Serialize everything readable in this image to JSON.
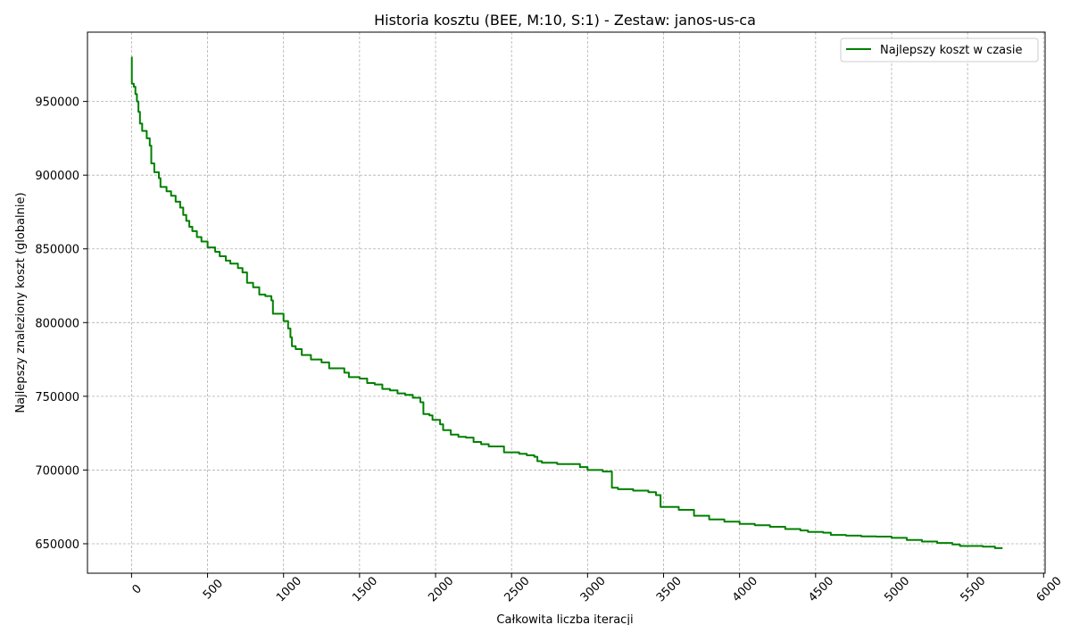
{
  "chart_data": {
    "type": "line",
    "title": "Historia kosztu (BEE, M:10, S:1) - Zestaw: janos-us-ca",
    "xlabel": "Całkowita liczba iteracji",
    "ylabel": "Najlepszy znaleziony koszt (globalnie)",
    "xlim": [
      -290,
      6010
    ],
    "ylim": [
      630000,
      997000
    ],
    "xticks": [
      0,
      500,
      1000,
      1500,
      2000,
      2500,
      3000,
      3500,
      4000,
      4500,
      5000,
      5500,
      6000
    ],
    "yticks": [
      650000,
      700000,
      750000,
      800000,
      850000,
      900000,
      950000
    ],
    "grid": true,
    "legend_position": "top-right",
    "series": [
      {
        "name": "Najlepszy koszt w czasie",
        "color": "#008000",
        "points": [
          [
            0,
            980000
          ],
          [
            2,
            962000
          ],
          [
            15,
            960000
          ],
          [
            25,
            955000
          ],
          [
            35,
            950000
          ],
          [
            45,
            943000
          ],
          [
            55,
            935000
          ],
          [
            70,
            930000
          ],
          [
            100,
            925000
          ],
          [
            120,
            920000
          ],
          [
            130,
            908000
          ],
          [
            150,
            902000
          ],
          [
            180,
            898000
          ],
          [
            190,
            892000
          ],
          [
            230,
            889000
          ],
          [
            260,
            886000
          ],
          [
            290,
            882000
          ],
          [
            320,
            878000
          ],
          [
            340,
            873000
          ],
          [
            360,
            869000
          ],
          [
            380,
            865000
          ],
          [
            400,
            862000
          ],
          [
            430,
            858000
          ],
          [
            460,
            855000
          ],
          [
            500,
            851000
          ],
          [
            550,
            848000
          ],
          [
            580,
            845000
          ],
          [
            620,
            842000
          ],
          [
            650,
            840000
          ],
          [
            700,
            837000
          ],
          [
            730,
            834000
          ],
          [
            760,
            827000
          ],
          [
            800,
            824000
          ],
          [
            840,
            819000
          ],
          [
            880,
            818000
          ],
          [
            920,
            815000
          ],
          [
            930,
            806000
          ],
          [
            1000,
            801000
          ],
          [
            1030,
            796000
          ],
          [
            1045,
            790000
          ],
          [
            1055,
            784000
          ],
          [
            1080,
            782000
          ],
          [
            1120,
            778000
          ],
          [
            1180,
            775000
          ],
          [
            1250,
            773000
          ],
          [
            1300,
            769000
          ],
          [
            1400,
            766000
          ],
          [
            1430,
            763000
          ],
          [
            1500,
            762000
          ],
          [
            1550,
            759000
          ],
          [
            1600,
            758000
          ],
          [
            1650,
            755000
          ],
          [
            1700,
            754000
          ],
          [
            1750,
            752000
          ],
          [
            1800,
            751000
          ],
          [
            1850,
            749000
          ],
          [
            1900,
            746000
          ],
          [
            1920,
            738000
          ],
          [
            1960,
            737000
          ],
          [
            1980,
            734000
          ],
          [
            2030,
            731000
          ],
          [
            2050,
            727000
          ],
          [
            2100,
            724000
          ],
          [
            2150,
            722500
          ],
          [
            2200,
            722000
          ],
          [
            2250,
            719000
          ],
          [
            2300,
            717500
          ],
          [
            2350,
            716000
          ],
          [
            2450,
            712000
          ],
          [
            2550,
            711000
          ],
          [
            2600,
            710000
          ],
          [
            2650,
            709000
          ],
          [
            2670,
            706000
          ],
          [
            2700,
            705000
          ],
          [
            2800,
            704000
          ],
          [
            2950,
            702000
          ],
          [
            3000,
            700000
          ],
          [
            3100,
            699000
          ],
          [
            3160,
            688000
          ],
          [
            3200,
            687000
          ],
          [
            3300,
            686000
          ],
          [
            3400,
            685000
          ],
          [
            3450,
            683000
          ],
          [
            3480,
            675000
          ],
          [
            3600,
            673000
          ],
          [
            3700,
            669000
          ],
          [
            3800,
            666500
          ],
          [
            3900,
            665000
          ],
          [
            4000,
            663500
          ],
          [
            4100,
            662500
          ],
          [
            4200,
            661500
          ],
          [
            4300,
            660000
          ],
          [
            4400,
            659000
          ],
          [
            4450,
            658000
          ],
          [
            4550,
            657500
          ],
          [
            4600,
            656000
          ],
          [
            4700,
            655500
          ],
          [
            4800,
            655000
          ],
          [
            4900,
            654800
          ],
          [
            5000,
            654000
          ],
          [
            5100,
            652500
          ],
          [
            5200,
            651500
          ],
          [
            5300,
            650500
          ],
          [
            5400,
            649500
          ],
          [
            5450,
            648500
          ],
          [
            5600,
            648000
          ],
          [
            5680,
            647000
          ],
          [
            5730,
            647000
          ]
        ]
      }
    ]
  }
}
